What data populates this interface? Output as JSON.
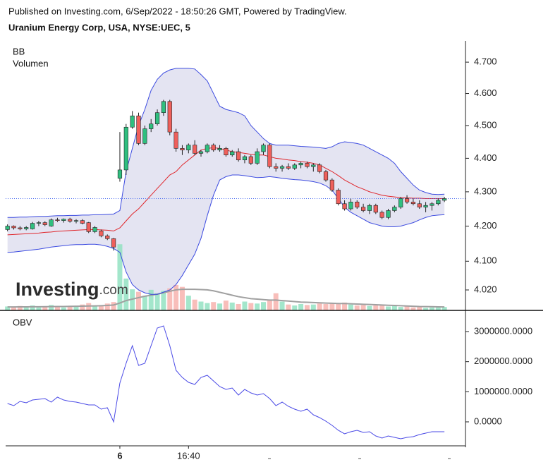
{
  "header": {
    "published": "Published on Investing.com, 6/Sep/2022 - 18:50:26 GMT, Powered by TradingView.",
    "symbol": "Uranium Energy Corp, USA, NYSE:UEC, 5"
  },
  "watermark": {
    "brand": "Investing",
    "suffix": ".com"
  },
  "chart_data": [
    {
      "type": "candlestick",
      "indicators": [
        "BB",
        "Volumen"
      ],
      "categories": [
        null,
        null,
        null,
        null,
        null,
        null,
        null,
        null,
        null,
        null,
        null,
        null,
        null,
        null,
        null,
        null,
        null,
        null,
        "6",
        null,
        null,
        null,
        null,
        null,
        null,
        null,
        null,
        null,
        null,
        "16:40",
        null,
        null,
        null,
        null,
        null,
        null,
        null,
        null,
        null,
        null,
        null,
        null,
        null,
        null,
        null,
        null,
        null,
        null,
        null,
        null,
        null,
        null,
        null,
        null,
        null,
        null,
        null,
        null,
        null,
        null,
        null,
        null,
        null,
        null,
        null,
        null,
        null,
        null,
        null,
        null,
        null
      ],
      "open": [
        4.19,
        4.2,
        4.195,
        4.192,
        4.192,
        4.208,
        4.21,
        4.2,
        4.218,
        4.216,
        4.22,
        4.214,
        4.216,
        4.21,
        4.184,
        4.186,
        4.172,
        4.164,
        4.34,
        4.365,
        4.495,
        4.53,
        4.445,
        4.49,
        4.505,
        4.54,
        4.575,
        4.48,
        4.43,
        4.425,
        4.44,
        4.415,
        4.42,
        4.44,
        4.425,
        4.43,
        4.41,
        4.42,
        4.395,
        4.405,
        4.385,
        4.42,
        4.44,
        4.375,
        4.37,
        4.375,
        4.37,
        4.38,
        4.385,
        4.375,
        4.38,
        4.36,
        4.335,
        4.305,
        4.265,
        4.25,
        4.27,
        4.255,
        4.245,
        4.26,
        4.24,
        4.225,
        4.245,
        4.255,
        4.28,
        4.27,
        4.265,
        4.255,
        4.26,
        4.265,
        4.275
      ],
      "high": [
        4.205,
        4.202,
        4.2,
        4.2,
        4.212,
        4.215,
        4.214,
        4.222,
        4.224,
        4.222,
        4.224,
        4.22,
        4.22,
        4.212,
        4.2,
        4.19,
        4.176,
        4.166,
        4.48,
        4.505,
        4.545,
        4.54,
        4.5,
        4.52,
        4.55,
        4.58,
        4.58,
        4.49,
        4.44,
        4.445,
        4.455,
        4.425,
        4.445,
        4.445,
        4.44,
        4.435,
        4.425,
        4.43,
        4.41,
        4.41,
        4.43,
        4.445,
        4.445,
        4.385,
        4.38,
        4.385,
        4.385,
        4.39,
        4.39,
        4.385,
        4.385,
        4.365,
        4.34,
        4.31,
        4.275,
        4.28,
        4.275,
        4.265,
        4.265,
        4.265,
        4.245,
        4.25,
        4.26,
        4.285,
        4.29,
        4.28,
        4.275,
        4.27,
        4.27,
        4.28,
        4.285
      ],
      "low": [
        4.185,
        4.19,
        4.188,
        4.188,
        4.19,
        4.2,
        4.2,
        4.198,
        4.212,
        4.21,
        4.21,
        4.208,
        4.205,
        4.18,
        4.18,
        4.168,
        4.16,
        4.13,
        4.33,
        4.35,
        4.49,
        4.44,
        4.44,
        4.48,
        4.5,
        4.53,
        4.47,
        4.42,
        4.41,
        4.415,
        4.41,
        4.405,
        4.415,
        4.42,
        4.42,
        4.405,
        4.405,
        4.39,
        4.385,
        4.38,
        4.38,
        4.41,
        4.37,
        4.36,
        4.36,
        4.365,
        4.365,
        4.37,
        4.37,
        4.36,
        4.355,
        4.33,
        4.3,
        4.26,
        4.245,
        4.245,
        4.25,
        4.24,
        4.235,
        4.235,
        4.22,
        4.22,
        4.24,
        4.25,
        4.265,
        4.26,
        4.25,
        4.24,
        4.245,
        4.26,
        4.27
      ],
      "close": [
        4.2,
        4.195,
        4.192,
        4.196,
        4.208,
        4.21,
        4.204,
        4.218,
        4.216,
        4.22,
        4.214,
        4.216,
        4.208,
        4.184,
        4.196,
        4.172,
        4.164,
        4.14,
        4.365,
        4.495,
        4.53,
        4.445,
        4.49,
        4.505,
        4.54,
        4.575,
        4.48,
        4.43,
        4.425,
        4.44,
        4.415,
        4.42,
        4.44,
        4.425,
        4.43,
        4.41,
        4.42,
        4.395,
        4.405,
        4.385,
        4.42,
        4.44,
        4.375,
        4.37,
        4.375,
        4.37,
        4.38,
        4.385,
        4.375,
        4.38,
        4.36,
        4.335,
        4.305,
        4.265,
        4.25,
        4.27,
        4.255,
        4.245,
        4.26,
        4.24,
        4.225,
        4.245,
        4.255,
        4.28,
        4.27,
        4.265,
        4.255,
        4.26,
        4.265,
        4.275,
        4.28
      ],
      "bb_upper": [
        4.225,
        4.225,
        4.226,
        4.226,
        4.227,
        4.228,
        4.228,
        4.229,
        4.23,
        4.23,
        4.231,
        4.231,
        4.232,
        4.232,
        4.233,
        4.233,
        4.234,
        4.235,
        4.245,
        4.36,
        4.43,
        4.5,
        4.55,
        4.61,
        4.645,
        4.665,
        4.675,
        4.68,
        4.68,
        4.68,
        4.678,
        4.66,
        4.64,
        4.6,
        4.56,
        4.55,
        4.545,
        4.54,
        4.53,
        4.5,
        4.48,
        4.46,
        4.445,
        4.44,
        4.44,
        4.44,
        4.438,
        4.436,
        4.435,
        4.434,
        4.432,
        4.43,
        4.435,
        4.445,
        4.45,
        4.448,
        4.445,
        4.44,
        4.43,
        4.42,
        4.41,
        4.4,
        4.385,
        4.36,
        4.34,
        4.32,
        4.305,
        4.298,
        4.293,
        4.292,
        4.293
      ],
      "bb_middle": [
        4.175,
        4.176,
        4.177,
        4.178,
        4.179,
        4.18,
        4.182,
        4.183,
        4.185,
        4.186,
        4.187,
        4.188,
        4.189,
        4.19,
        4.19,
        4.189,
        4.188,
        4.186,
        4.195,
        4.215,
        4.235,
        4.25,
        4.27,
        4.29,
        4.31,
        4.33,
        4.35,
        4.36,
        4.38,
        4.395,
        4.41,
        4.425,
        4.43,
        4.432,
        4.43,
        4.425,
        4.42,
        4.418,
        4.415,
        4.412,
        4.41,
        4.41,
        4.405,
        4.4,
        4.398,
        4.395,
        4.393,
        4.39,
        4.388,
        4.385,
        4.38,
        4.37,
        4.36,
        4.348,
        4.335,
        4.325,
        4.315,
        4.308,
        4.3,
        4.295,
        4.29,
        4.287,
        4.285,
        4.283,
        4.282,
        4.281,
        4.281,
        4.28,
        4.28,
        4.28,
        4.28
      ],
      "bb_lower": [
        4.125,
        4.126,
        4.128,
        4.13,
        4.132,
        4.134,
        4.137,
        4.14,
        4.142,
        4.144,
        4.146,
        4.147,
        4.147,
        4.148,
        4.148,
        4.146,
        4.142,
        4.136,
        4.125,
        4.07,
        4.035,
        4.02,
        4.012,
        4.008,
        4.008,
        4.014,
        4.02,
        4.035,
        4.06,
        4.09,
        4.12,
        4.165,
        4.23,
        4.29,
        4.335,
        4.345,
        4.35,
        4.35,
        4.348,
        4.345,
        4.342,
        4.343,
        4.345,
        4.343,
        4.34,
        4.338,
        4.336,
        4.335,
        4.333,
        4.33,
        4.326,
        4.318,
        4.305,
        4.28,
        4.255,
        4.24,
        4.23,
        4.22,
        4.21,
        4.205,
        4.2,
        4.198,
        4.198,
        4.2,
        4.205,
        4.21,
        4.218,
        4.225,
        4.23,
        4.232,
        4.233
      ],
      "volume": [
        80000,
        60000,
        90000,
        70000,
        100000,
        60000,
        80000,
        110000,
        70000,
        60000,
        90000,
        80000,
        120000,
        150000,
        90000,
        100000,
        140000,
        170000,
        1350000,
        650000,
        430000,
        380000,
        300000,
        420000,
        350000,
        400000,
        450000,
        520000,
        480000,
        300000,
        220000,
        180000,
        150000,
        170000,
        140000,
        200000,
        160000,
        130000,
        180000,
        150000,
        140000,
        170000,
        200000,
        350000,
        180000,
        120000,
        100000,
        130000,
        110000,
        120000,
        140000,
        130000,
        150000,
        130000,
        160000,
        120000,
        100000,
        110000,
        90000,
        100000,
        120000,
        80000,
        90000,
        70000,
        80000,
        60000,
        70000,
        50000,
        60000,
        80000,
        70000
      ],
      "volume_ma": [
        70000,
        70000,
        72000,
        72000,
        74000,
        74000,
        76000,
        78000,
        80000,
        80000,
        82000,
        84000,
        86000,
        90000,
        92000,
        95000,
        100000,
        110000,
        150000,
        200000,
        230000,
        260000,
        290000,
        310000,
        330000,
        360000,
        390000,
        420000,
        430000,
        430000,
        430000,
        425000,
        420000,
        400000,
        370000,
        340000,
        310000,
        280000,
        260000,
        240000,
        230000,
        220000,
        210000,
        210000,
        200000,
        190000,
        180000,
        170000,
        165000,
        160000,
        155000,
        150000,
        145000,
        140000,
        140000,
        135000,
        130000,
        125000,
        120000,
        115000,
        110000,
        105000,
        100000,
        95000,
        90000,
        85000,
        80000,
        78000,
        75000,
        72000,
        70000
      ],
      "last_price": 4.28,
      "ylim": [
        3.964,
        4.769
      ],
      "log_scale": true,
      "yticks": [
        {
          "value": 4.7,
          "label": "4.700"
        },
        {
          "value": 4.6,
          "label": "4.600"
        },
        {
          "value": 4.5,
          "label": "4.500"
        },
        {
          "value": 4.4,
          "label": "4.400"
        },
        {
          "value": 4.3,
          "label": "4.300"
        },
        {
          "value": 4.2,
          "label": "4.200"
        },
        {
          "value": 4.1,
          "label": "4.100"
        },
        {
          "value": 4.02,
          "label": "4.020"
        }
      ],
      "volume_lim": [
        0,
        5500000
      ],
      "up_color": "#2fbf7f",
      "down_color": "#ef5f5b",
      "wick_color": "#222222",
      "bb_band_color": "#3b4ae0",
      "bb_middle_color": "#e0262b",
      "bb_fill": "#e4e4f2",
      "volume_up_color": "#93e2c2",
      "volume_down_color": "#f7b3ae",
      "volume_ma_color": "#a0a0a0",
      "last_price_color": "#4a6cf0"
    },
    {
      "type": "line",
      "title": "OBV",
      "color": "#4a4ae6",
      "values": [
        609000,
        539000,
        680000,
        633000,
        726000,
        750000,
        773000,
        656000,
        820000,
        726000,
        680000,
        656000,
        609000,
        562000,
        562000,
        422000,
        469000,
        0,
        1289000,
        1945000,
        2531000,
        1875000,
        1945000,
        2531000,
        3117000,
        3187000,
        2531000,
        1711000,
        1476000,
        1312000,
        1242000,
        1476000,
        1547000,
        1359000,
        1172000,
        1078000,
        1125000,
        891000,
        1078000,
        961000,
        891000,
        937000,
        773000,
        539000,
        656000,
        516000,
        422000,
        352000,
        422000,
        234000,
        141000,
        23000,
        -117000,
        -281000,
        -398000,
        -328000,
        -281000,
        -352000,
        -328000,
        -469000,
        -539000,
        -469000,
        -516000,
        -562000,
        -516000,
        -492000,
        -422000,
        -375000,
        -328000,
        -328000,
        -328000
      ],
      "ylim": [
        -797000,
        3680000
      ],
      "yticks": [
        {
          "value": 3000000,
          "label": "3000000.0000"
        },
        {
          "value": 2000000,
          "label": "2000000.0000"
        },
        {
          "value": 1000000,
          "label": "1000000.0000"
        },
        {
          "value": 0,
          "label": "0.0000"
        }
      ]
    }
  ]
}
